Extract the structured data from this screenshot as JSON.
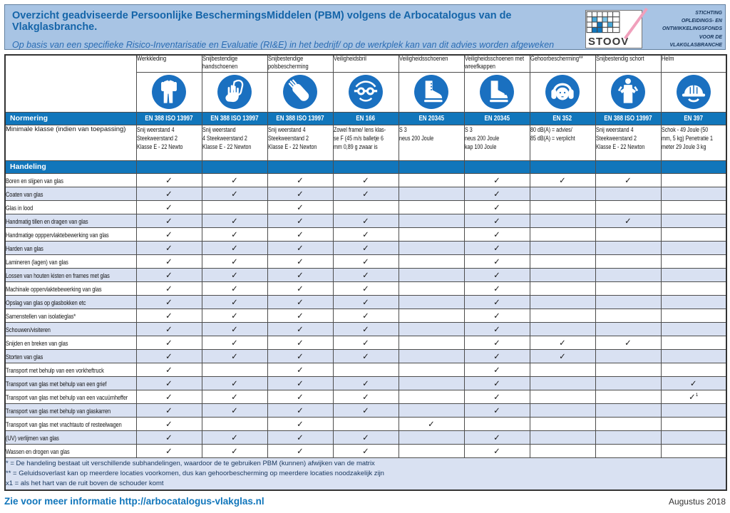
{
  "header": {
    "title": "Overzicht geadviseerde Persoonlijke BeschermingsMiddelen (PBM) volgens de Arbocatalogus van de Vlakglasbranche.",
    "subtitle": "Op basis van een specifieke Risico-Inventarisatie en Evaluatie (RI&E) in het bedrijf/ op de werkplek kan van dit advies worden afgeweken",
    "logo": {
      "name": "STOOV",
      "org_lines": [
        "STICHTING",
        "OPLEIDINGS- EN",
        "ONTWIKKELINGSFONDS",
        "VOOR DE VLAKGLASBRANCHE"
      ]
    }
  },
  "colors": {
    "band_bg": "#a8c4e4",
    "bar_blue": "#1176bb",
    "icon_blue": "#1a70c0",
    "row_alt": "#d9e1f2",
    "title_blue": "#1565a9",
    "link_blue": "#1176bb",
    "slash_pink": "#f0a0bc"
  },
  "table": {
    "normering_label": "Normering",
    "minimale_klasse_label": "Minimale klasse (indien van toepassing)",
    "handeling_label": "Handeling",
    "check_glyph": "✓",
    "columns": [
      {
        "label": "Werkkleding",
        "icon": "coverall-icon",
        "norm": "EN 388 ISO 13997",
        "klasse": "Snij weerstand 4\nSteekweerstand 2\nKlasse  E - 22 Newto"
      },
      {
        "label": "Snijbestendige handschoenen",
        "icon": "gloves-icon",
        "norm": "EN 388 ISO 13997",
        "klasse": "Snij weerstand\n4 Steekweerstand 2\nKlasse  E - 22 Newton"
      },
      {
        "label": "Snijbestendige polsbescherming",
        "icon": "arm-sleeve-icon",
        "norm": "EN 388 ISO 13997",
        "klasse": "Snij weerstand 4\nSteekweerstand 2\nKlasse  E - 22 Newton"
      },
      {
        "label": "Veiligheidsbril",
        "icon": "safety-goggles-icon",
        "norm": "EN 166",
        "klasse": "Zowel frame/ lens klas-\nse F (45 m/s balletje 6\nmm 0,89 g zwaar is"
      },
      {
        "label": "Veiligheidsschoenen",
        "icon": "safety-boot-icon",
        "norm": "EN 20345",
        "klasse": "S 3\nneus 200 Joule"
      },
      {
        "label": "Veiligheidsschoenen met wreefkappen",
        "icon": "safety-boot-instep-icon",
        "norm": "EN 20345",
        "klasse": "S 3\nneus 200 Joule\nkap 100 Joule"
      },
      {
        "label": "Gehoorbescherming**",
        "icon": "ear-protection-icon",
        "norm": "EN 352",
        "klasse": "80 dB(A) = advies/\n85 dB(A) = verplicht"
      },
      {
        "label": "Snijbestendig schort",
        "icon": "apron-icon",
        "norm": "EN 388 ISO 13997",
        "klasse": "Snij weerstand 4\nSteekweerstand 2\nKlasse  E - 22 Newton"
      },
      {
        "label": "Helm",
        "icon": "helmet-icon",
        "norm": "EN 397",
        "klasse": "Schok - 49 Joule (50\nmm, 5 kg) Penetratie 1\nmeter 29 Joule 3 kg"
      }
    ],
    "rows": [
      {
        "label": "Boren en slijpen van glas",
        "checks": [
          1,
          1,
          1,
          1,
          0,
          1,
          1,
          1,
          0
        ]
      },
      {
        "label": "Coaten van glas",
        "checks": [
          1,
          1,
          1,
          1,
          0,
          1,
          0,
          0,
          0
        ]
      },
      {
        "label": "Glas in lood",
        "checks": [
          1,
          0,
          1,
          0,
          0,
          1,
          0,
          0,
          0
        ]
      },
      {
        "label": "Handmatig tillen en dragen van glas",
        "checks": [
          1,
          1,
          1,
          1,
          0,
          1,
          0,
          1,
          0
        ]
      },
      {
        "label": "Handmatige opppervlaktebewerking van glas",
        "checks": [
          1,
          1,
          1,
          1,
          0,
          1,
          0,
          0,
          0
        ]
      },
      {
        "label": "Harden van glas",
        "checks": [
          1,
          1,
          1,
          1,
          0,
          1,
          0,
          0,
          0
        ]
      },
      {
        "label": "Lamineren (lagen) van glas",
        "checks": [
          1,
          1,
          1,
          1,
          0,
          1,
          0,
          0,
          0
        ]
      },
      {
        "label": "Lossen van houten kisten en frames met glas",
        "checks": [
          1,
          1,
          1,
          1,
          0,
          1,
          0,
          0,
          0
        ]
      },
      {
        "label": "Machinale oppervlaktebewerking van glas",
        "checks": [
          1,
          1,
          1,
          1,
          0,
          1,
          0,
          0,
          0
        ]
      },
      {
        "label": "Opslag van glas op glasbokken etc",
        "checks": [
          1,
          1,
          1,
          1,
          0,
          1,
          0,
          0,
          0
        ]
      },
      {
        "label": "Samenstellen van isolatieglas*",
        "checks": [
          1,
          1,
          1,
          1,
          0,
          1,
          0,
          0,
          0
        ]
      },
      {
        "label": "Schouwen/visiteren",
        "checks": [
          1,
          1,
          1,
          1,
          0,
          1,
          0,
          0,
          0
        ]
      },
      {
        "label": "Snijden en breken van glas",
        "checks": [
          1,
          1,
          1,
          1,
          0,
          1,
          1,
          1,
          0
        ]
      },
      {
        "label": "Storten van glas",
        "checks": [
          1,
          1,
          1,
          1,
          0,
          1,
          1,
          0,
          0
        ]
      },
      {
        "label": "Transport met behulp van een vorkheftruck",
        "checks": [
          1,
          0,
          1,
          0,
          0,
          1,
          0,
          0,
          0
        ]
      },
      {
        "label": "Transport van glas met behulp van een grief",
        "checks": [
          1,
          1,
          1,
          1,
          0,
          1,
          0,
          0,
          1
        ]
      },
      {
        "label": "Transport van glas met behulp van een vacuümheffer",
        "checks": [
          1,
          1,
          1,
          1,
          0,
          1,
          0,
          0,
          "1s"
        ]
      },
      {
        "label": "Transport van glas met behulp van glaskarren",
        "checks": [
          1,
          1,
          1,
          1,
          0,
          1,
          0,
          0,
          0
        ]
      },
      {
        "label": "Transport van glas met vrachtauto of resteelwagen",
        "checks": [
          1,
          0,
          1,
          0,
          1,
          0,
          0,
          0,
          0
        ]
      },
      {
        "label": "(UV) verlijmen van glas",
        "checks": [
          1,
          1,
          1,
          1,
          0,
          1,
          0,
          0,
          0
        ]
      },
      {
        "label": "Wassen en drogen van glas",
        "checks": [
          1,
          1,
          1,
          1,
          0,
          1,
          0,
          0,
          0
        ]
      }
    ]
  },
  "footnotes": [
    "*  = De handeling bestaat uit verschillende subhandelingen, waardoor de te gebruiken PBM (kunnen) afwijken van de matrix",
    "** = Geluidsoverlast kan op meerdere locaties voorkomen, dus kan gehoorbescherming op meerdere locaties noodzakelijk zijn",
    "x1 = als het hart van de ruit boven de schouder komt"
  ],
  "footer": {
    "link": "Zie voor meer informatie http://arbocatalogus-vlakglas.nl",
    "date": "Augustus 2018"
  }
}
